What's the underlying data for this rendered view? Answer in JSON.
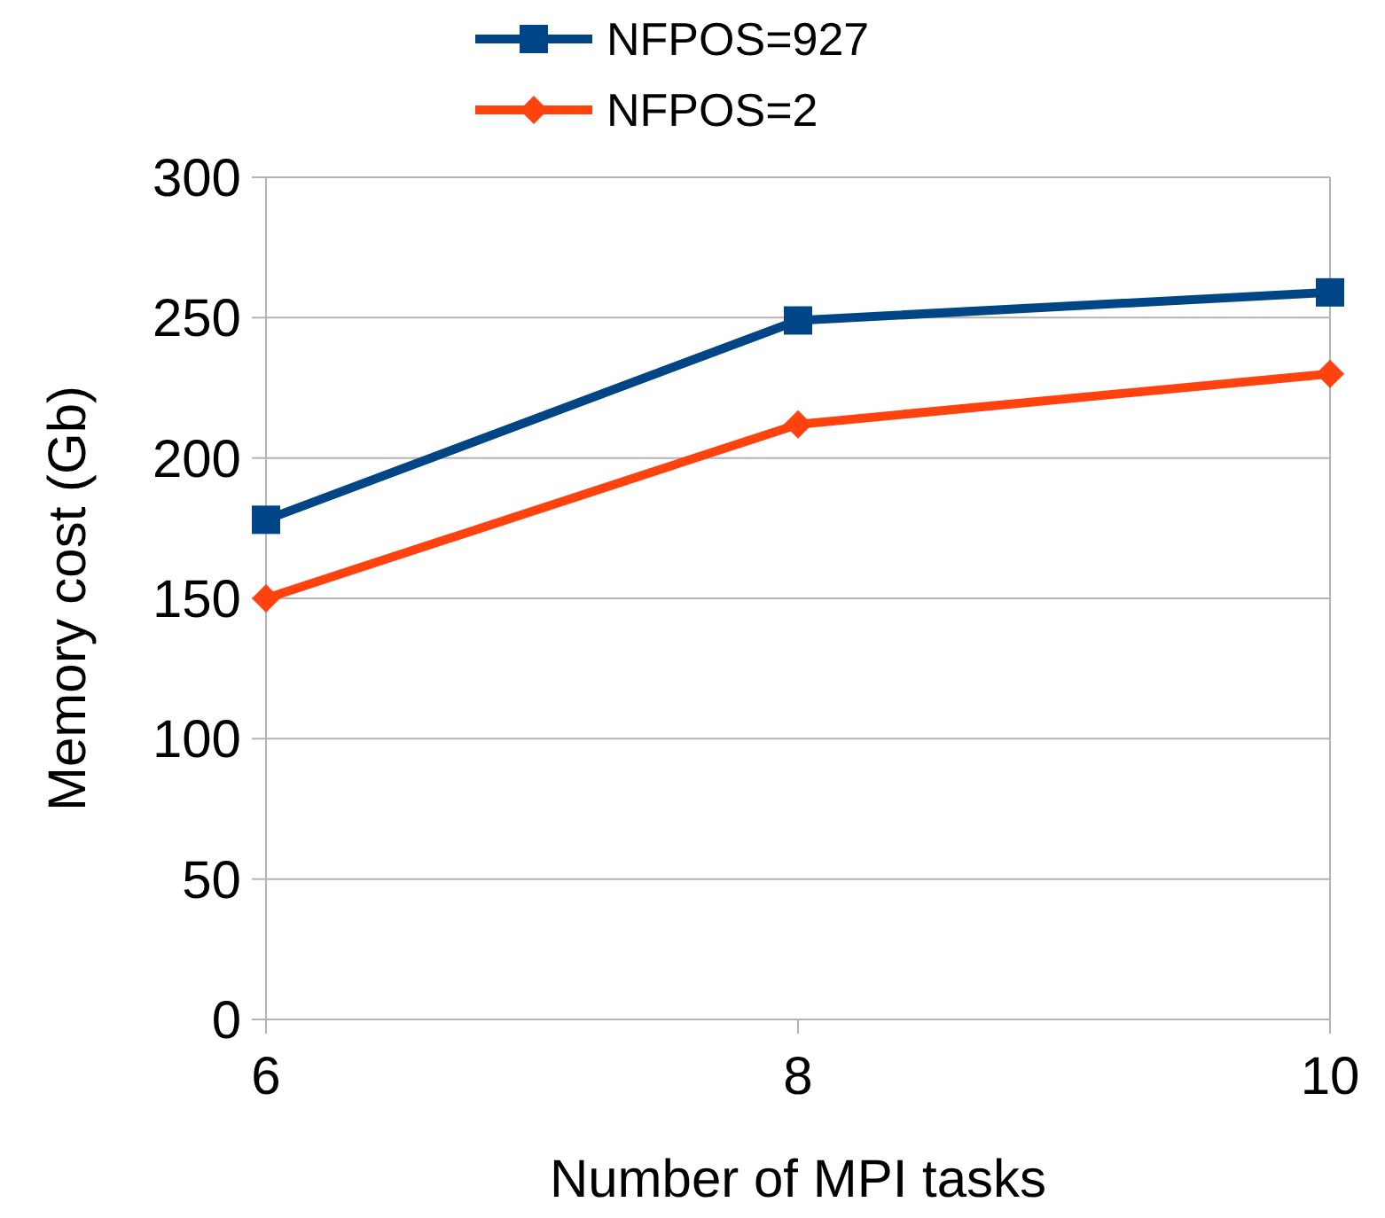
{
  "chart_data": {
    "type": "line",
    "xlabel": "Number of MPI tasks",
    "ylabel": "Memory cost (Gb)",
    "x": [
      6,
      8,
      10
    ],
    "xlim": [
      6,
      10
    ],
    "xticks": [
      6,
      8,
      10
    ],
    "ylim": [
      0,
      300
    ],
    "yticks": [
      0,
      50,
      100,
      150,
      200,
      250,
      300
    ],
    "grid": "y",
    "legend": "top",
    "series": [
      {
        "name": "NFPOS=927",
        "color": "#004586",
        "marker": "square",
        "values": [
          178,
          249,
          259
        ]
      },
      {
        "name": "NFPOS=2",
        "color": "#ff420e",
        "marker": "diamond",
        "values": [
          150,
          212,
          230
        ]
      }
    ]
  }
}
